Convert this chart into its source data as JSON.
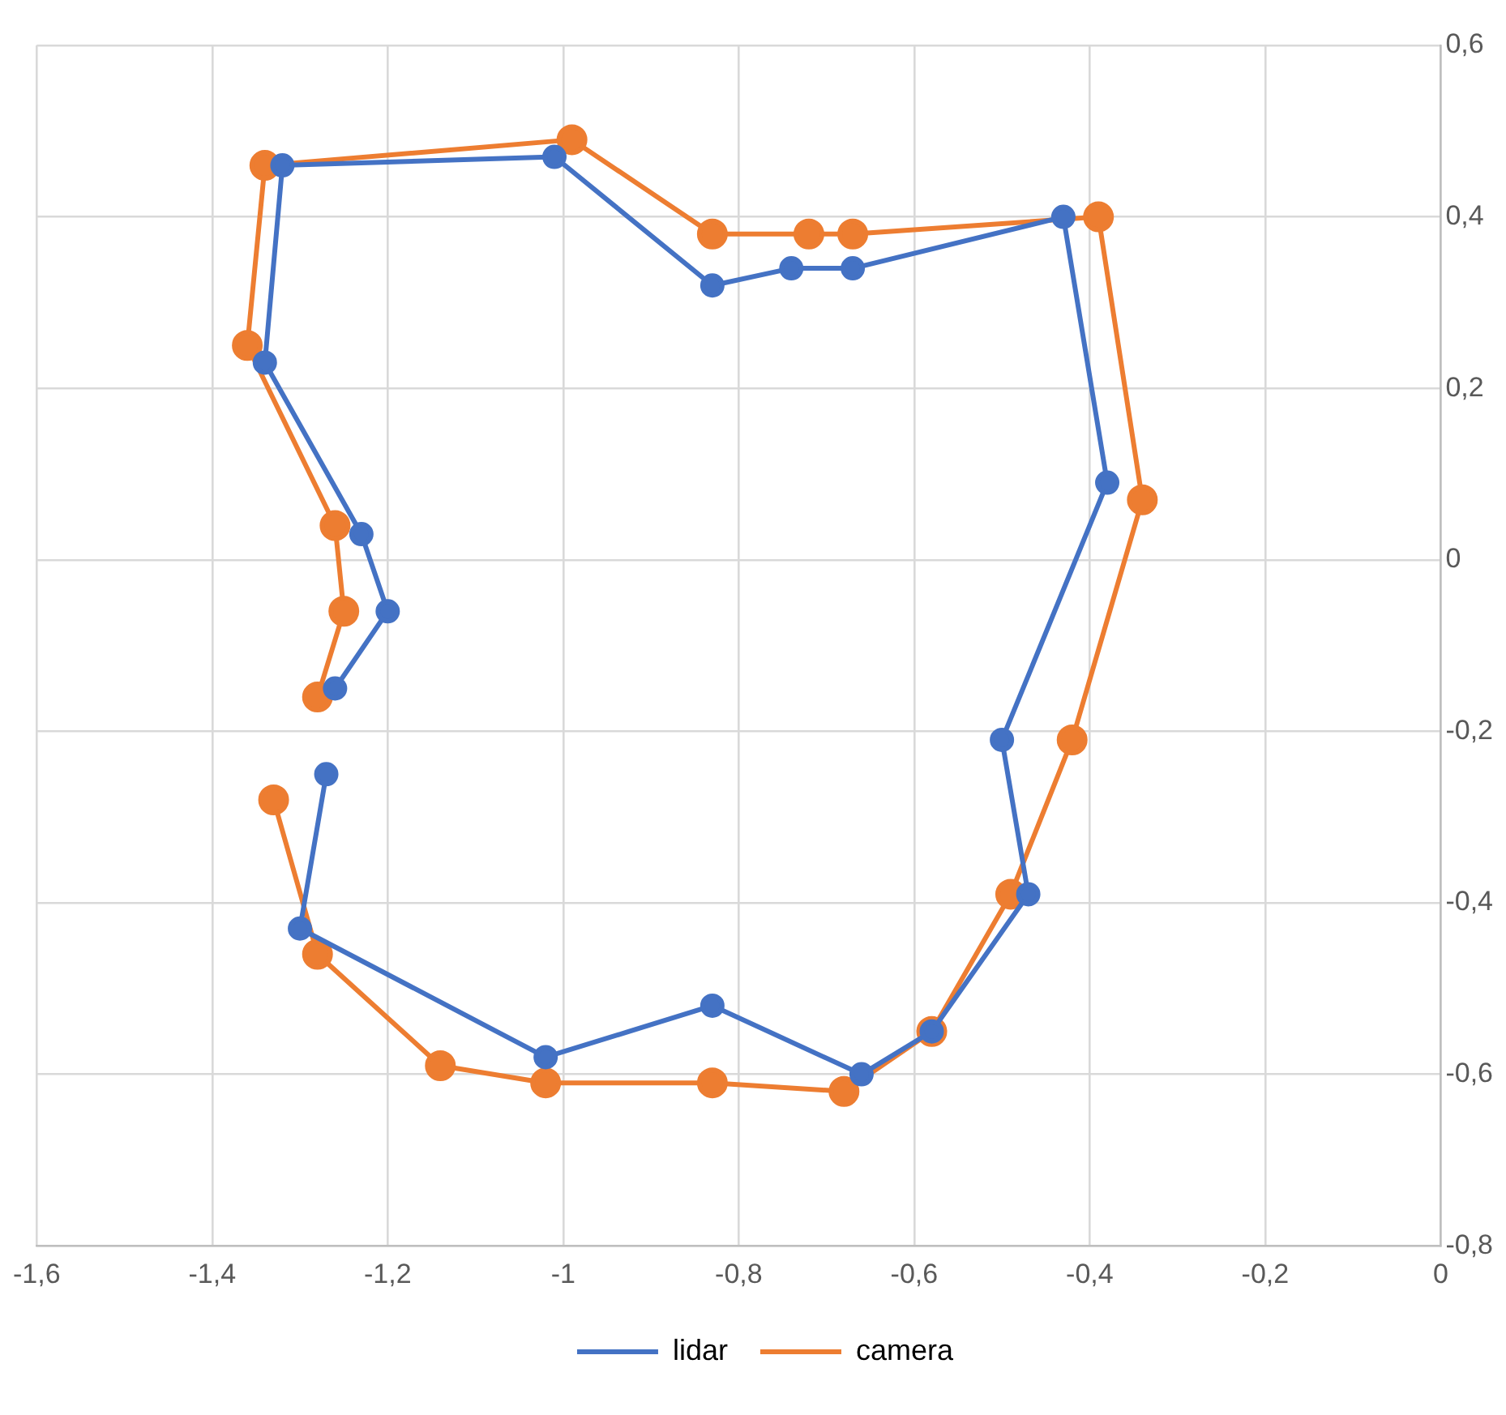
{
  "chart_data": {
    "type": "line",
    "marker": "circle",
    "line_style": "solid",
    "grid": true,
    "legend": "bottom",
    "xlim": [
      -1.6,
      0
    ],
    "ylim": [
      -0.8,
      0.6
    ],
    "xticks": [
      {
        "value": -1.6,
        "label": "-1,6"
      },
      {
        "value": -1.4,
        "label": "-1,4"
      },
      {
        "value": -1.2,
        "label": "-1,2"
      },
      {
        "value": -1,
        "label": "-1"
      },
      {
        "value": -0.8,
        "label": "-0,8"
      },
      {
        "value": -0.6,
        "label": "-0,6"
      },
      {
        "value": -0.4,
        "label": "-0,4"
      },
      {
        "value": -0.2,
        "label": "-0,2"
      },
      {
        "value": 0,
        "label": "0"
      }
    ],
    "yticks": [
      {
        "value": -0.8,
        "label": "-0,8"
      },
      {
        "value": -0.6,
        "label": "-0,6"
      },
      {
        "value": -0.4,
        "label": "-0,4"
      },
      {
        "value": -0.2,
        "label": "-0,2"
      },
      {
        "value": 0,
        "label": "0"
      },
      {
        "value": 0.2,
        "label": "0,2"
      },
      {
        "value": 0.4,
        "label": "0,4"
      },
      {
        "value": 0.6,
        "label": "0,6"
      }
    ],
    "series": [
      {
        "name": "lidar",
        "color": "#4472c4",
        "x": [
          -1.27,
          -1.3,
          -1.02,
          -0.83,
          -0.66,
          -0.58,
          -0.47,
          -0.5,
          -0.38,
          -0.43,
          -0.67,
          -0.74,
          -0.83,
          -1.01,
          -1.32,
          -1.34,
          -1.23,
          -1.2,
          -1.26
        ],
        "values": [
          -0.25,
          -0.43,
          -0.58,
          -0.52,
          -0.6,
          -0.55,
          -0.39,
          -0.21,
          0.09,
          0.4,
          0.34,
          0.34,
          0.32,
          0.47,
          0.46,
          0.23,
          0.03,
          -0.06,
          -0.15
        ]
      },
      {
        "name": "camera",
        "color": "#ed7d31",
        "x": [
          -1.33,
          -1.28,
          -1.14,
          -1.02,
          -0.83,
          -0.68,
          -0.58,
          -0.49,
          -0.42,
          -0.34,
          -0.39,
          -0.67,
          -0.72,
          -0.83,
          -0.99,
          -1.34,
          -1.36,
          -1.26,
          -1.25,
          -1.28
        ],
        "values": [
          -0.28,
          -0.46,
          -0.59,
          -0.61,
          -0.61,
          -0.62,
          -0.55,
          -0.39,
          -0.21,
          0.07,
          0.4,
          0.38,
          0.38,
          0.38,
          0.49,
          0.46,
          0.25,
          0.04,
          -0.06,
          -0.16
        ]
      }
    ]
  }
}
